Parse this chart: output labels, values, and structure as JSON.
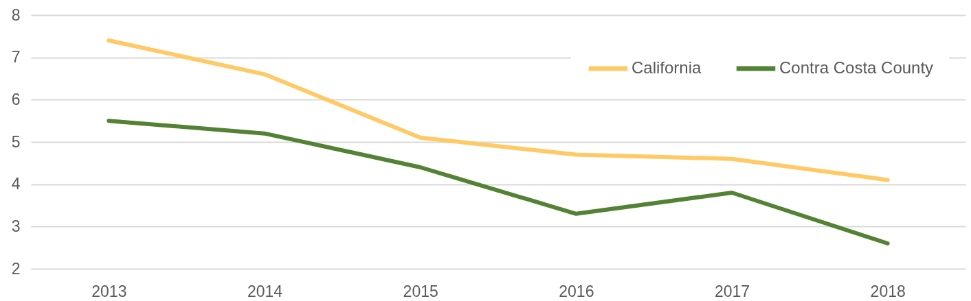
{
  "chart_data": {
    "type": "line",
    "categories": [
      "2013",
      "2014",
      "2015",
      "2016",
      "2017",
      "2018"
    ],
    "series": [
      {
        "name": "California",
        "color": "#ffca66",
        "values": [
          7.4,
          6.6,
          5.1,
          4.7,
          4.6,
          4.1
        ]
      },
      {
        "name": "Contra Costa County",
        "color": "#548235",
        "values": [
          5.5,
          5.2,
          4.4,
          3.3,
          3.8,
          2.6
        ]
      }
    ],
    "ylim": [
      2,
      8
    ],
    "yticks": [
      2,
      3,
      4,
      5,
      6,
      7,
      8
    ],
    "grid": "y",
    "legend": "top right"
  }
}
